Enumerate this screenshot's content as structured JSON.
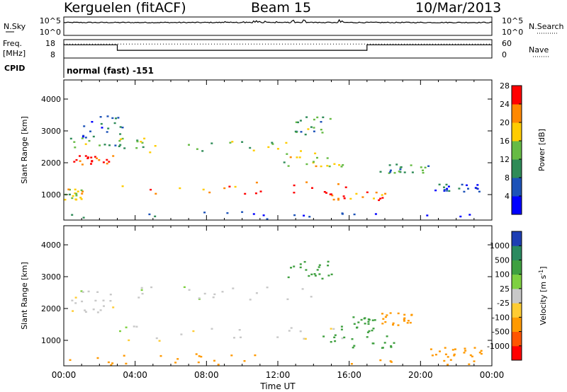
{
  "header": {
    "station": "Kerguelen (fitACF)",
    "beam": "Beam 15",
    "date": "10/Mar/2013"
  },
  "panels": {
    "nsky": {
      "label": "N.Sky",
      "left_ticks": [
        "10^5",
        "10^0"
      ],
      "right_ticks": [
        "10^5",
        "10^0"
      ],
      "right_label": "N.Search"
    },
    "freq": {
      "label_line1": "Freq.",
      "label_line2": "[MHz]",
      "left_ticks": [
        "18",
        "8"
      ],
      "right_ticks": [
        "60",
        "0"
      ],
      "right_label": "Nave",
      "steps": [
        {
          "t_start": 0.0,
          "t_end": 3.0,
          "level": 0.72
        },
        {
          "t_start": 3.0,
          "t_end": 17.0,
          "level": 0.42
        },
        {
          "t_start": 17.0,
          "t_end": 24.0,
          "level": 0.72
        }
      ],
      "nave_level": 0.72
    },
    "cpid": {
      "label": "CPID",
      "text": "normal (fast) -151"
    }
  },
  "chart_data": [
    {
      "type": "heatmap",
      "name": "power",
      "ylabel": "Slant Range [km]",
      "xlabel": "",
      "ylim": [
        200,
        4600
      ],
      "xlim": [
        0,
        24
      ],
      "y_ticks": [
        "1000",
        "2000",
        "3000",
        "4000"
      ],
      "colorbar": {
        "label": "Power [dB]",
        "ticks": [
          "4",
          "8",
          "12",
          "16",
          "20",
          "24",
          "28"
        ],
        "colors": [
          "#0000ff",
          "#1c52b8",
          "#2e8b57",
          "#66bb44",
          "#ffcc00",
          "#ff8800",
          "#ff0000"
        ]
      },
      "regions": [
        {
          "t": [
            0.3,
            2.8
          ],
          "r": [
            1950,
            2250
          ],
          "value": 28
        },
        {
          "t": [
            3.0,
            16.3
          ],
          "r": [
            1050,
            1450
          ],
          "value": 26
        },
        {
          "t": [
            14.5,
            18.2
          ],
          "r": [
            800,
            1150
          ],
          "value": 24
        },
        {
          "t": [
            0.3,
            4.5
          ],
          "r": [
            2400,
            2800
          ],
          "value": 14
        },
        {
          "t": [
            4.0,
            14.0
          ],
          "r": [
            2300,
            2700
          ],
          "value": 16
        },
        {
          "t": [
            12.0,
            16.0
          ],
          "r": [
            1900,
            2400
          ],
          "value": 18
        },
        {
          "t": [
            1.0,
            3.5
          ],
          "r": [
            2800,
            3500
          ],
          "value": 10
        },
        {
          "t": [
            12.5,
            15.0
          ],
          "r": [
            2900,
            3500
          ],
          "value": 14
        },
        {
          "t": [
            0.0,
            1.0
          ],
          "r": [
            850,
            1200
          ],
          "value": 18
        },
        {
          "t": [
            0.2,
            24.0
          ],
          "r": [
            250,
            500
          ],
          "value": 8
        },
        {
          "t": [
            17.5,
            20.5
          ],
          "r": [
            1700,
            2000
          ],
          "value": 12
        },
        {
          "t": [
            20.0,
            23.5
          ],
          "r": [
            1100,
            1350
          ],
          "value": 8
        }
      ]
    },
    {
      "type": "heatmap",
      "name": "velocity",
      "ylabel": "Slant Range [km]",
      "xlabel": "Time UT",
      "ylim": [
        200,
        4600
      ],
      "xlim": [
        0,
        24
      ],
      "y_ticks": [
        "1000",
        "2000",
        "3000",
        "4000"
      ],
      "x_ticks": [
        "00:00",
        "04:00",
        "08:00",
        "12:00",
        "16:00",
        "20:00",
        "00:00"
      ],
      "colorbar": {
        "label": "Velocity [m s",
        "label_sup": "-1",
        "label_end": "]",
        "ticks": [
          "1000",
          "500",
          "100",
          "25",
          "-25",
          "-100",
          "-500",
          "-1000"
        ],
        "colors": [
          "#1e3fb4",
          "#2a8a60",
          "#3fa040",
          "#7ed040",
          "#c8c8c8",
          "#ffcc33",
          "#ff9900",
          "#ff5500",
          "#ff0000"
        ]
      },
      "regions": [
        {
          "t": [
            0.3,
            2.8
          ],
          "r": [
            1900,
            2600
          ],
          "value": 0
        },
        {
          "t": [
            3.0,
            16.3
          ],
          "r": [
            1000,
            1500
          ],
          "value": 0
        },
        {
          "t": [
            4.0,
            14.0
          ],
          "r": [
            2300,
            2700
          ],
          "value": 0
        },
        {
          "t": [
            14.5,
            18.5
          ],
          "r": [
            750,
            1300
          ],
          "value": 200
        },
        {
          "t": [
            15.5,
            17.5
          ],
          "r": [
            1300,
            1800
          ],
          "value": 250
        },
        {
          "t": [
            12.5,
            15.0
          ],
          "r": [
            2900,
            3500
          ],
          "value": 150
        },
        {
          "t": [
            0.0,
            24.0
          ],
          "r": [
            250,
            600
          ],
          "value": -150
        },
        {
          "t": [
            20.5,
            23.5
          ],
          "r": [
            500,
            800
          ],
          "value": -300
        },
        {
          "t": [
            17.8,
            19.5
          ],
          "r": [
            1500,
            1900
          ],
          "value": -200
        }
      ]
    }
  ]
}
